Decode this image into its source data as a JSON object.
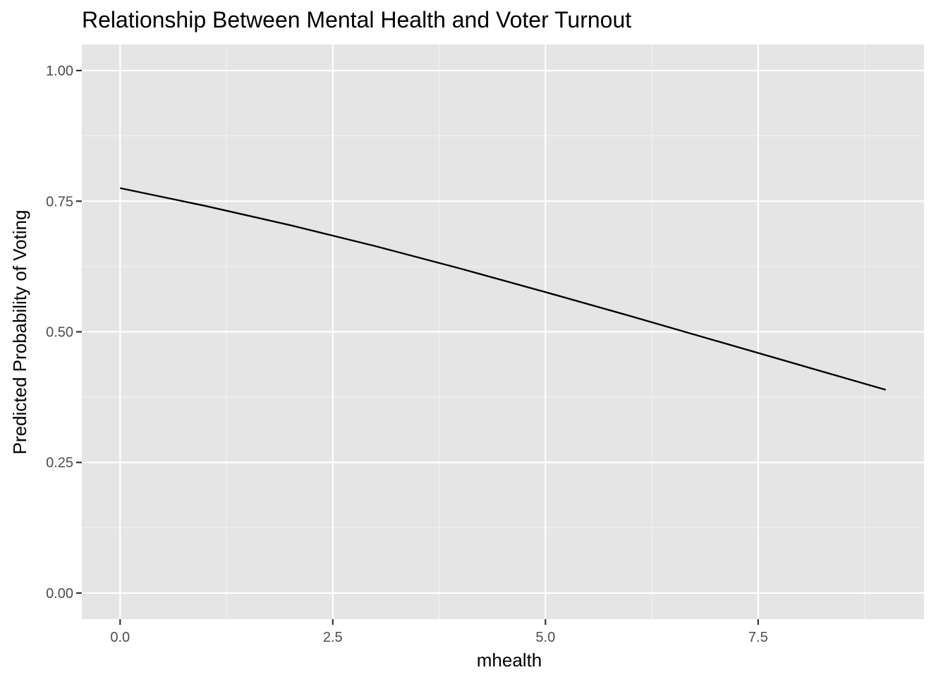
{
  "chart_data": {
    "type": "line",
    "title": "Relationship Between Mental Health and Voter Turnout",
    "xlabel": "mhealth",
    "ylabel": "Predicted Probability of Voting",
    "xlim": [
      -0.45,
      9.45
    ],
    "ylim": [
      -0.05,
      1.05
    ],
    "x_ticks": [
      0,
      2.5,
      5,
      7.5
    ],
    "x_tick_labels": [
      "0.0",
      "2.5",
      "5.0",
      "7.5"
    ],
    "x_minor_ticks": [
      1.25,
      3.75,
      6.25,
      8.75
    ],
    "y_ticks": [
      0,
      0.25,
      0.5,
      0.75,
      1
    ],
    "y_tick_labels": [
      "0.00",
      "0.25",
      "0.50",
      "0.75",
      "1.00"
    ],
    "y_minor_ticks": [
      0.125,
      0.375,
      0.625,
      0.875
    ],
    "grid": true,
    "legend": "none",
    "series": [
      {
        "x": [
          0,
          1,
          2,
          3,
          4,
          5,
          6,
          7,
          8,
          9
        ],
        "y": [
          0.775,
          0.741,
          0.704,
          0.664,
          0.621,
          0.576,
          0.53,
          0.483,
          0.436,
          0.389
        ],
        "color": "#000000"
      }
    ],
    "colors": {
      "panel_background": "#e5e5e5",
      "grid_major": "#ffffff",
      "grid_minor": "#f2f2f2",
      "tick_label": "#4d4d4d",
      "axis_tick": "#333333",
      "line": "#000000"
    }
  }
}
